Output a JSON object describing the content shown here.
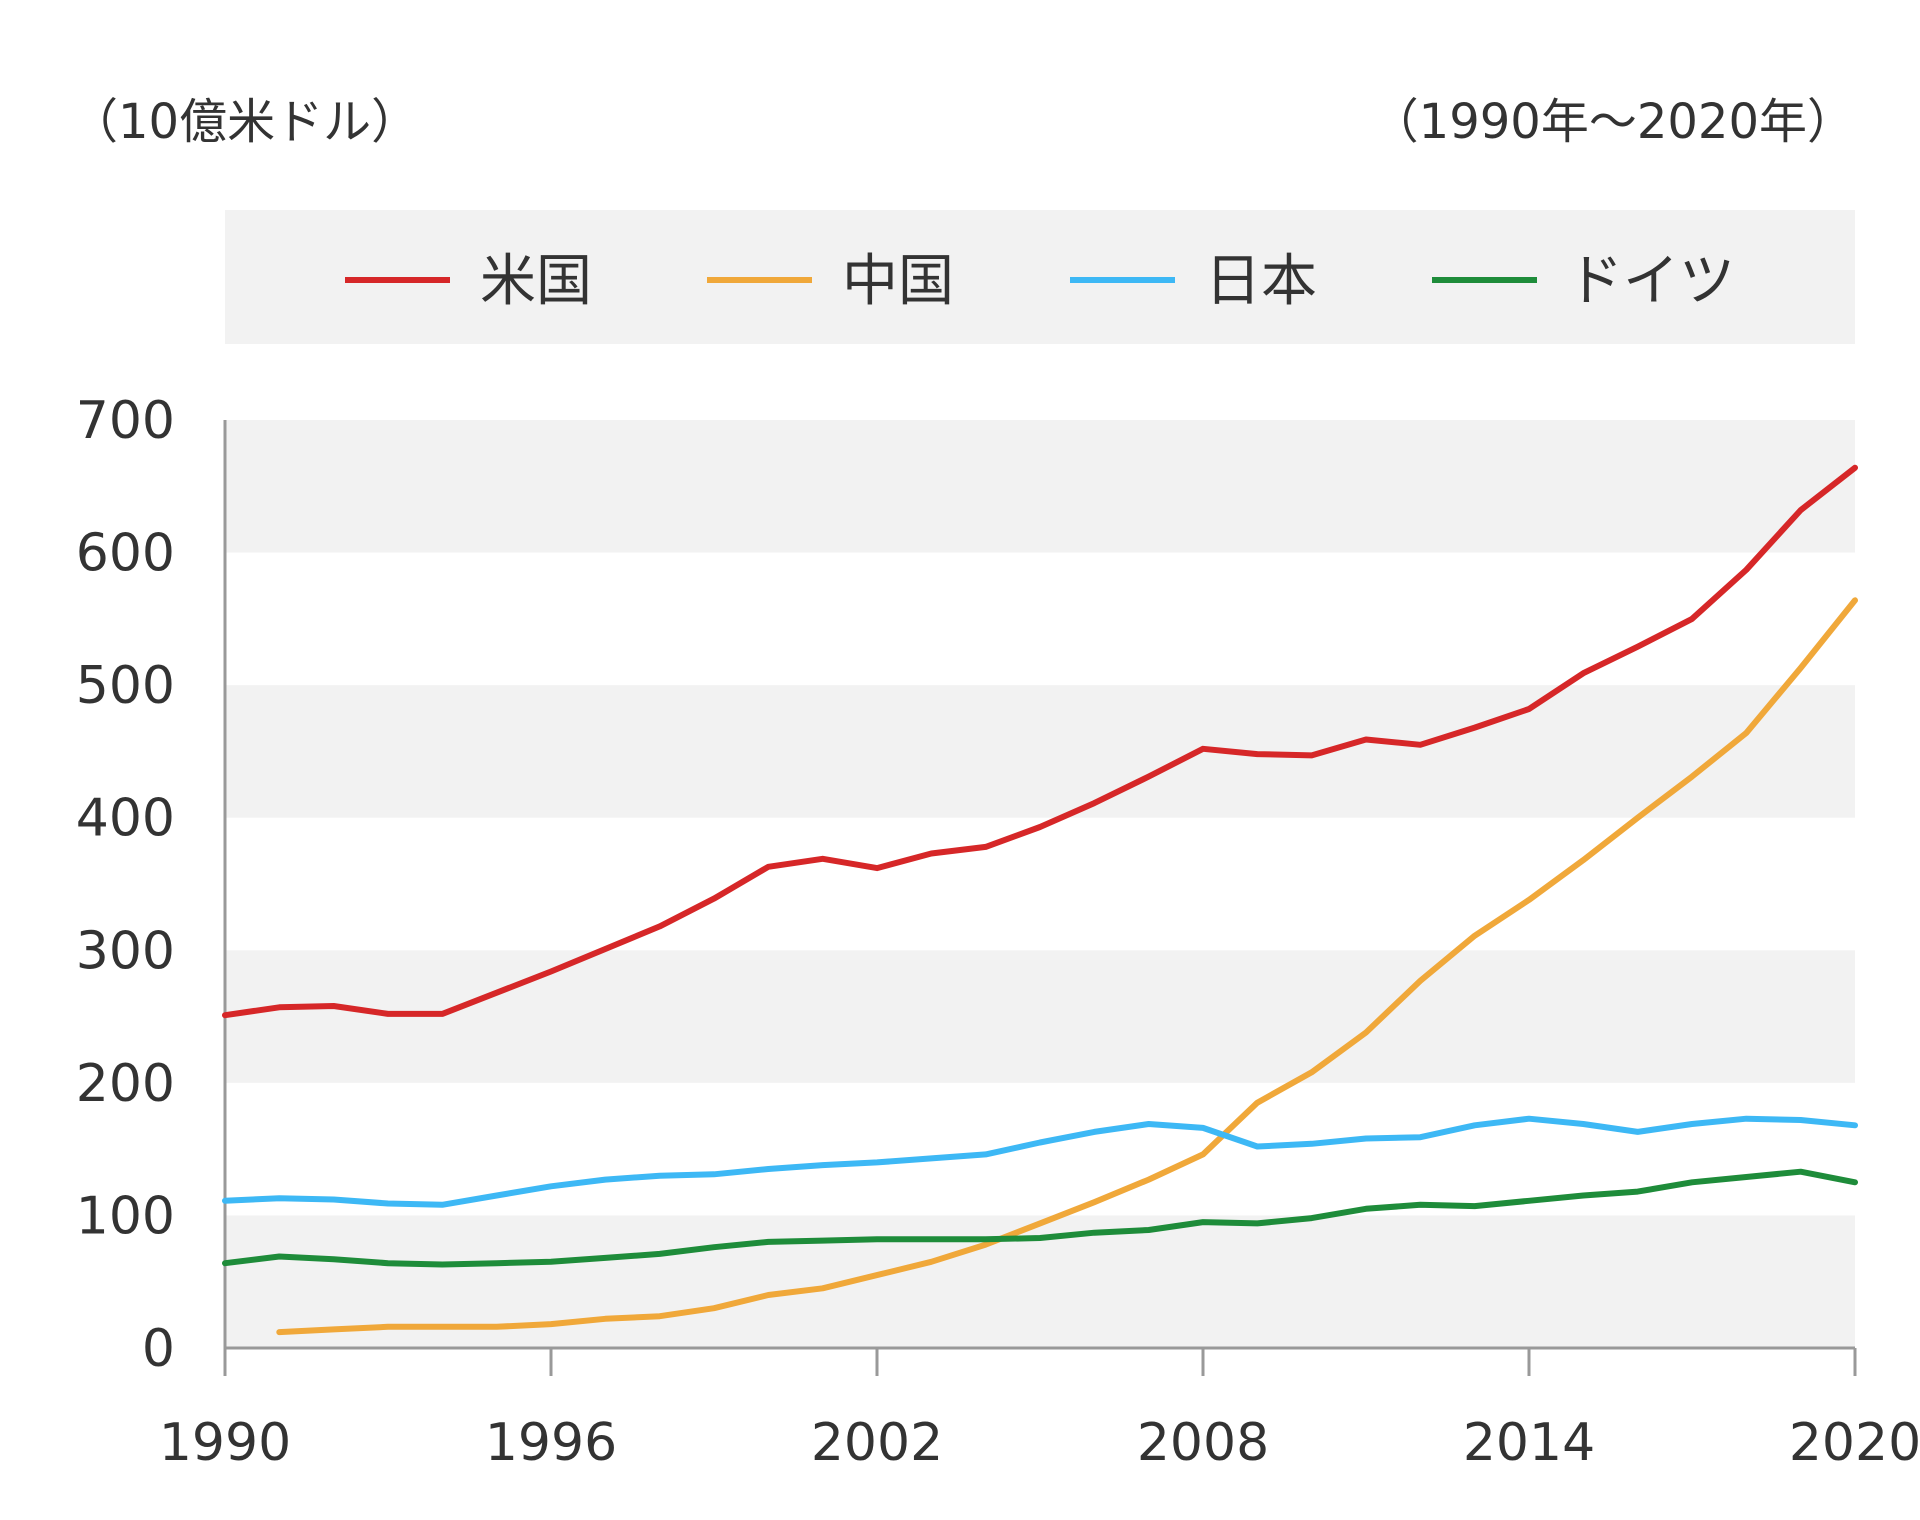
{
  "header": {
    "unit_label": "（10億米ドル）",
    "period_label": "（1990年〜2020年）"
  },
  "chart_data": {
    "type": "line",
    "x": [
      1990,
      1991,
      1992,
      1993,
      1994,
      1995,
      1996,
      1997,
      1998,
      1999,
      2000,
      2001,
      2002,
      2003,
      2004,
      2005,
      2006,
      2007,
      2008,
      2009,
      2010,
      2011,
      2012,
      2013,
      2014,
      2015,
      2016,
      2017,
      2018,
      2019,
      2020
    ],
    "xlim": [
      1990,
      2020
    ],
    "ylim": [
      0,
      700
    ],
    "x_ticks": [
      1990,
      1996,
      2002,
      2008,
      2014,
      2020
    ],
    "y_ticks": [
      0,
      100,
      200,
      300,
      400,
      500,
      600,
      700
    ],
    "grid": "alternating horizontal bands",
    "legend_position": "top",
    "series": [
      {
        "name": "米国",
        "color": "#d62728",
        "values": [
          251,
          257,
          258,
          252,
          252,
          268,
          284,
          301,
          318,
          339,
          363,
          369,
          362,
          373,
          378,
          393,
          411,
          431,
          452,
          448,
          447,
          459,
          455,
          468,
          482,
          509,
          529,
          550,
          587,
          632,
          664
        ]
      },
      {
        "name": "中国",
        "color": "#f0a83a",
        "values": [
          null,
          12,
          14,
          16,
          16,
          16,
          18,
          22,
          24,
          30,
          40,
          45,
          55,
          65,
          78,
          94,
          110,
          127,
          146,
          185,
          208,
          238,
          277,
          311,
          338,
          368,
          400,
          431,
          464,
          513,
          564
        ]
      },
      {
        "name": "日本",
        "color": "#3db8f5",
        "values": [
          111,
          113,
          112,
          109,
          108,
          115,
          122,
          127,
          130,
          131,
          135,
          138,
          140,
          143,
          146,
          155,
          163,
          169,
          166,
          152,
          154,
          158,
          159,
          168,
          173,
          169,
          163,
          169,
          173,
          172,
          168
        ]
      },
      {
        "name": "ドイツ",
        "color": "#1e8c3a",
        "values": [
          64,
          69,
          67,
          64,
          63,
          64,
          65,
          68,
          71,
          76,
          80,
          81,
          82,
          82,
          82,
          83,
          87,
          89,
          95,
          94,
          98,
          105,
          108,
          107,
          111,
          115,
          118,
          125,
          129,
          133,
          125
        ]
      }
    ]
  }
}
